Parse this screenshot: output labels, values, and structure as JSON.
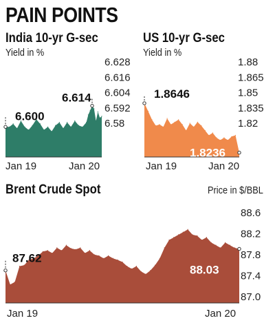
{
  "heading": "PAIN POINTS",
  "charts": {
    "india": {
      "title": "India 10-yr G-sec",
      "subtitle": "Yield in %",
      "color": "#2e7d68",
      "chart_data": {
        "type": "area",
        "title": "India 10-yr G-sec",
        "ylabel": "Yield in %",
        "ylim": [
          6.58,
          6.628
        ],
        "yticks": [
          "6.628",
          "6.616",
          "6.604",
          "6.592",
          "6.58"
        ],
        "xticks": [
          "Jan 19",
          "Jan 20"
        ],
        "x": [
          0,
          0.04,
          0.08,
          0.12,
          0.16,
          0.2,
          0.24,
          0.28,
          0.32,
          0.36,
          0.4,
          0.44,
          0.48,
          0.52,
          0.56,
          0.6,
          0.64,
          0.68,
          0.72,
          0.76,
          0.8,
          0.84,
          0.86,
          0.88,
          0.9,
          0.92,
          0.94,
          0.96,
          0.98,
          1
        ],
        "values": [
          6.6,
          6.6,
          6.602,
          6.599,
          6.604,
          6.6,
          6.598,
          6.601,
          6.605,
          6.602,
          6.598,
          6.6,
          6.597,
          6.601,
          6.603,
          6.599,
          6.603,
          6.6,
          6.604,
          6.601,
          6.6,
          6.603,
          6.608,
          6.611,
          6.614,
          6.612,
          6.604,
          6.61,
          6.606,
          6.607
        ],
        "annotations": [
          {
            "label": "6.600",
            "x": 0.0,
            "value": 6.6
          },
          {
            "label": "6.614",
            "x": 0.9,
            "value": 6.614
          }
        ]
      }
    },
    "us": {
      "title": "US 10-yr G-sec",
      "subtitle": "Yield in %",
      "color": "#f08a4b",
      "chart_data": {
        "type": "area",
        "title": "US 10-yr G-sec",
        "ylabel": "Yield in %",
        "ylim": [
          1.82,
          1.88
        ],
        "yticks": [
          "1.88",
          "1.865",
          "1.85",
          "1.835",
          "1.82"
        ],
        "xticks": [
          "Jan 19",
          "Jan 20"
        ],
        "x": [
          0,
          0.04,
          0.08,
          0.12,
          0.16,
          0.2,
          0.24,
          0.28,
          0.32,
          0.36,
          0.4,
          0.44,
          0.48,
          0.52,
          0.56,
          0.6,
          0.64,
          0.68,
          0.72,
          0.76,
          0.8,
          0.84,
          0.88,
          0.92,
          0.96,
          1
        ],
        "values": [
          1.8646,
          1.858,
          1.851,
          1.846,
          1.847,
          1.845,
          1.852,
          1.847,
          1.849,
          1.851,
          1.847,
          1.842,
          1.848,
          1.845,
          1.849,
          1.846,
          1.842,
          1.838,
          1.84,
          1.836,
          1.834,
          1.836,
          1.834,
          1.837,
          1.838,
          1.8236
        ],
        "annotations": [
          {
            "label": "1.8646",
            "x": 0.0,
            "value": 1.8646
          },
          {
            "label": "1.8236",
            "x": 1.0,
            "value": 1.8236
          }
        ]
      }
    },
    "brent": {
      "title": "Brent Crude Spot",
      "subtitle": "Price in $/BBL",
      "color": "#a94d3a",
      "chart_data": {
        "type": "area",
        "title": "Brent Crude Spot",
        "ylabel": "Price in $/BBL",
        "ylim": [
          87.0,
          88.6
        ],
        "yticks": [
          "88.6",
          "88.2",
          "87.8",
          "87.4",
          "87.0"
        ],
        "xticks": [
          "Jan 19",
          "Jan 20"
        ],
        "x": [
          0,
          0.02,
          0.04,
          0.06,
          0.08,
          0.1,
          0.12,
          0.14,
          0.16,
          0.18,
          0.2,
          0.22,
          0.24,
          0.26,
          0.28,
          0.3,
          0.32,
          0.34,
          0.36,
          0.38,
          0.4,
          0.42,
          0.44,
          0.46,
          0.48,
          0.5,
          0.52,
          0.54,
          0.56,
          0.58,
          0.6,
          0.62,
          0.64,
          0.66,
          0.68,
          0.7,
          0.72,
          0.74,
          0.76,
          0.78,
          0.8,
          0.82,
          0.84,
          0.86,
          0.88,
          0.9,
          0.92,
          0.94,
          0.96,
          0.98,
          1
        ],
        "values": [
          87.62,
          87.35,
          87.4,
          87.7,
          87.72,
          87.82,
          87.85,
          87.9,
          87.98,
          88.0,
          87.95,
          88.05,
          88.0,
          88.1,
          88.04,
          88.02,
          88.05,
          87.95,
          88.0,
          87.92,
          87.9,
          87.85,
          87.9,
          87.85,
          87.82,
          87.78,
          87.7,
          87.65,
          87.7,
          87.6,
          87.55,
          87.62,
          87.72,
          87.85,
          88.05,
          88.2,
          88.25,
          88.3,
          88.35,
          88.4,
          88.3,
          88.28,
          88.2,
          88.25,
          88.15,
          88.1,
          88.05,
          88.15,
          88.1,
          88.05,
          88.03
        ],
        "annotations": [
          {
            "label": "87.62",
            "x": 0.0,
            "value": 87.62
          },
          {
            "label": "88.03",
            "x": 1.0,
            "value": 88.03
          }
        ]
      }
    }
  }
}
